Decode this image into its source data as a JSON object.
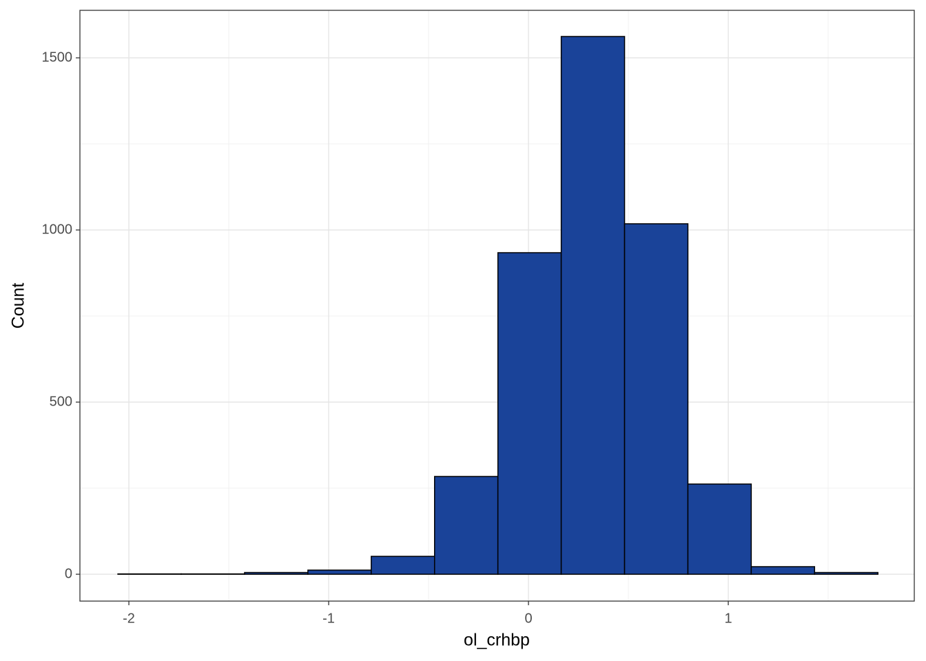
{
  "chart_data": {
    "type": "histogram",
    "x_label": "ol_crhbp",
    "y_label": "Count",
    "bins": [
      -2.055,
      -1.738,
      -1.421,
      -1.104,
      -0.787,
      -0.47,
      -0.153,
      0.164,
      0.481,
      0.798,
      1.115,
      1.432,
      1.749
    ],
    "values": [
      1,
      1,
      5,
      12,
      52,
      284,
      934,
      1562,
      1018,
      262,
      22,
      5
    ],
    "color": "#1a4399",
    "edge_color": "#000000",
    "xlim": [
      -2.245,
      1.931
    ],
    "xticks": [
      -2,
      -1,
      0,
      1
    ],
    "ylim": [
      -78,
      1638
    ],
    "yticks": [
      0,
      500,
      1000,
      1500
    ],
    "grid": true
  }
}
